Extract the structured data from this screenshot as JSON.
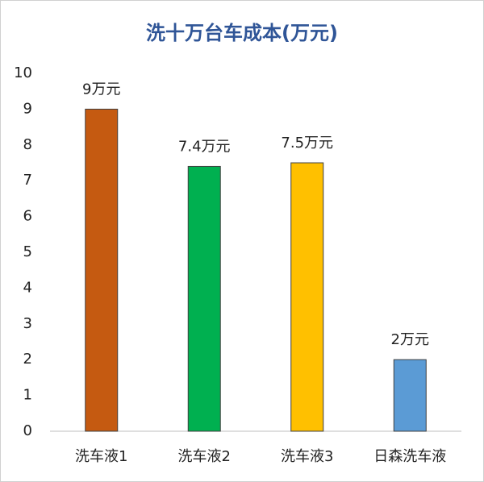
{
  "chart_data": {
    "type": "bar",
    "title": "洗十万台车成本(万元)",
    "categories": [
      "洗车液1",
      "洗车液2",
      "洗车液3",
      "日森洗车液"
    ],
    "values": [
      9,
      7.4,
      7.5,
      2
    ],
    "value_labels": [
      "9万元",
      "7.4万元",
      "7.5万元",
      "2万元"
    ],
    "colors": [
      "#c55a11",
      "#00b050",
      "#ffc000",
      "#5b9bd5"
    ],
    "ylim": [
      0,
      10
    ],
    "yticks": [
      0,
      1,
      2,
      3,
      4,
      5,
      6,
      7,
      8,
      9,
      10
    ],
    "grid": false
  }
}
